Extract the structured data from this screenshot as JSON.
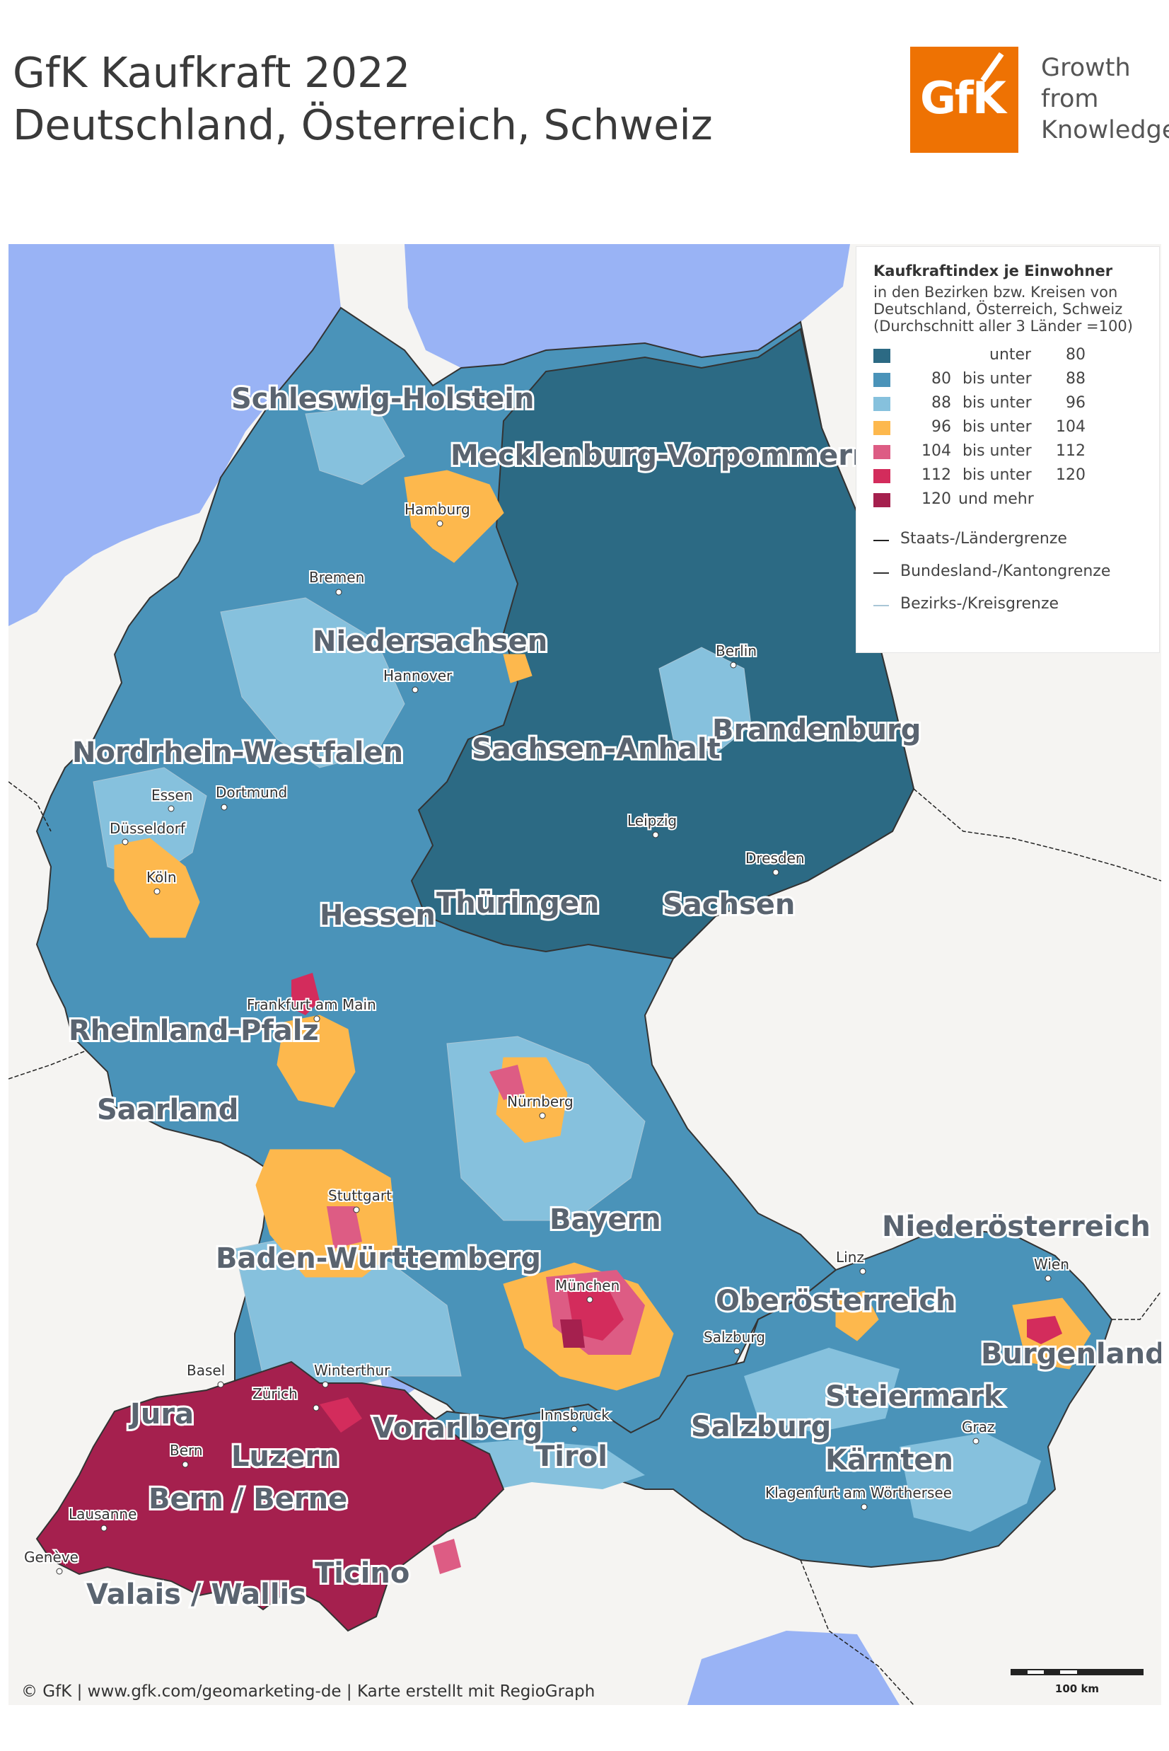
{
  "title": {
    "line1": "GfK Kaufkraft 2022",
    "line2": "Deutschland, Österreich, Schweiz"
  },
  "logo": {
    "mark": "GfK",
    "line1": "Growth",
    "line2": "from",
    "line3": "Knowledge"
  },
  "legend": {
    "title": "Kaufkraftindex je Einwohner",
    "subtitle1": "in den Bezirken bzw. Kreisen von",
    "subtitle2": "Deutschland, Österreich, Schweiz",
    "subtitle3": "(Durchschnitt aller 3 Länder =100)",
    "classes": [
      {
        "low": "",
        "mid": "unter",
        "high": "80",
        "color": "#2c6a84"
      },
      {
        "low": "80",
        "mid": "bis unter",
        "high": "88",
        "color": "#4a93b9"
      },
      {
        "low": "88",
        "mid": "bis unter",
        "high": "96",
        "color": "#86c1dd"
      },
      {
        "low": "96",
        "mid": "bis unter",
        "high": "104",
        "color": "#fdb84d"
      },
      {
        "low": "104",
        "mid": "bis unter",
        "high": "112",
        "color": "#dd5c84"
      },
      {
        "low": "112",
        "mid": "bis unter",
        "high": "120",
        "color": "#d32c5c"
      },
      {
        "low": "120",
        "mid": "und mehr",
        "high": "",
        "color": "#a5204e"
      }
    ],
    "lines": [
      {
        "label": "Staats-/Ländergrenze",
        "color": "#222222"
      },
      {
        "label": "Bundesland-/Kantongrenze",
        "color": "#333333"
      },
      {
        "label": "Bezirks-/Kreisgrenze",
        "color": "#a9c6d6"
      }
    ]
  },
  "regions": {
    "schleswig_holstein": "Schleswig-Holstein",
    "mecklenburg_vorpommern": "Mecklenburg-Vorpommern",
    "niedersachsen": "Niedersachsen",
    "brandenburg": "Brandenburg",
    "nordrhein_westfalen": "Nordrhein-Westfalen",
    "sachsen_anhalt": "Sachsen-Anhalt",
    "hessen": "Hessen",
    "thueringen": "Thüringen",
    "sachsen": "Sachsen",
    "rheinland_pfalz": "Rheinland-Pfalz",
    "saarland": "Saarland",
    "bayern": "Bayern",
    "niederoesterreich": "Niederösterreich",
    "baden_wuerttemberg": "Baden-Württemberg",
    "oberoesterreich": "Oberösterreich",
    "burgenland": "Burgenland",
    "steiermark": "Steiermark",
    "jura": "Jura",
    "vorarlberg": "Vorarlberg",
    "salzburg": "Salzburg",
    "luzern": "Luzern",
    "tirol": "Tirol",
    "kaernten": "Kärnten",
    "bern": "Bern / Berne",
    "ticino": "Ticino",
    "valais": "Valais / Wallis"
  },
  "cities": {
    "hamburg": "Hamburg",
    "bremen": "Bremen",
    "berlin": "Berlin",
    "hannover": "Hannover",
    "essen": "Essen",
    "dortmund": "Dortmund",
    "duesseldorf": "Düsseldorf",
    "leipzig": "Leipzig",
    "koeln": "Köln",
    "dresden": "Dresden",
    "frankfurt": "Frankfurt am Main",
    "nuernberg": "Nürnberg",
    "stuttgart": "Stuttgart",
    "linz": "Linz",
    "wien": "Wien",
    "muenchen": "München",
    "salzburg": "Salzburg",
    "basel": "Basel",
    "winterthur": "Winterthur",
    "zuerich": "Zürich",
    "innsbruck": "Innsbruck",
    "graz": "Graz",
    "bern": "Bern",
    "klagenfurt": "Klagenfurt am Wörthersee",
    "lausanne": "Lausanne",
    "geneve": "Genève"
  },
  "scale": {
    "label": "100 km"
  },
  "copyright": "© GfK | www.gfk.com/geomarketing-de | Karte erstellt mit RegioGraph"
}
